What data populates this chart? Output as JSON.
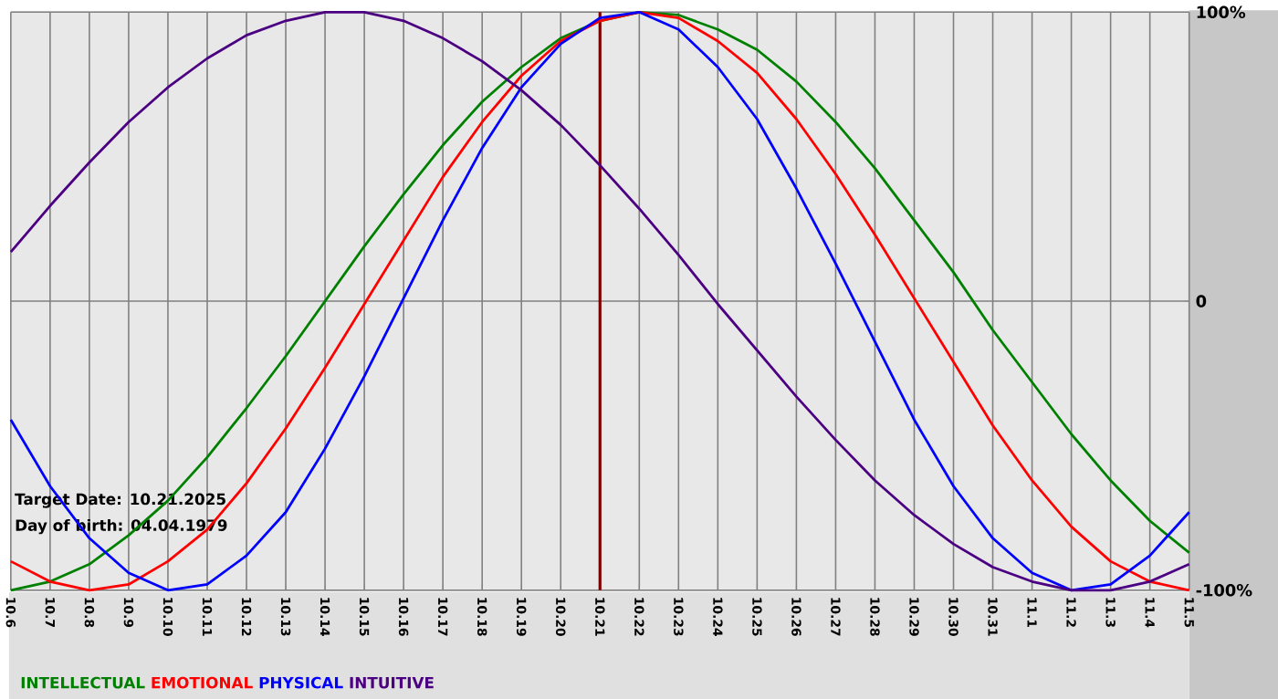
{
  "chart_data": {
    "type": "line",
    "categories": [
      "10.6",
      "10.7",
      "10.8",
      "10.9",
      "10.10",
      "10.11",
      "10.12",
      "10.13",
      "10.14",
      "10.15",
      "10.16",
      "10.17",
      "10.18",
      "10.19",
      "10.20",
      "10.21",
      "10.22",
      "10.23",
      "10.24",
      "10.25",
      "10.26",
      "10.27",
      "10.28",
      "10.29",
      "10.30",
      "10.31",
      "11.1",
      "11.2",
      "11.3",
      "11.4",
      "11.5"
    ],
    "series": [
      {
        "name": "INTELLECTUAL",
        "color": "#008000",
        "values": [
          -100,
          -97,
          -91,
          -81,
          -69,
          -54,
          -37,
          -19,
          0,
          19,
          37,
          54,
          69,
          81,
          91,
          97,
          100,
          99,
          94,
          87,
          76,
          62,
          46,
          28,
          10,
          -10,
          -28,
          -46,
          -62,
          -76,
          -87
        ]
      },
      {
        "name": "EMOTIONAL",
        "color": "#ff0000",
        "values": [
          -90,
          -97,
          -100,
          -98,
          -90,
          -79,
          -63,
          -44,
          -23,
          -1,
          21,
          43,
          62,
          78,
          90,
          97,
          100,
          98,
          90,
          79,
          63,
          44,
          23,
          1,
          -21,
          -43,
          -62,
          -78,
          -90,
          -97,
          -100
        ]
      },
      {
        "name": "PHYSICAL",
        "color": "#0000ff",
        "values": [
          -41,
          -64,
          -82,
          -94,
          -100,
          -98,
          -88,
          -73,
          -51,
          -26,
          1,
          28,
          53,
          74,
          89,
          98,
          100,
          94,
          81,
          63,
          39,
          13,
          -14,
          -41,
          -64,
          -82,
          -94,
          -100,
          -98,
          -88,
          -73
        ]
      },
      {
        "name": "INTUITIVE",
        "color": "#4b0082",
        "values": [
          17,
          33,
          48,
          62,
          74,
          84,
          92,
          97,
          100,
          100,
          97,
          91,
          83,
          73,
          61,
          47,
          32,
          16,
          -1,
          -17,
          -33,
          -48,
          -62,
          -74,
          -84,
          -92,
          -97,
          -100,
          -100,
          -97,
          -91
        ]
      }
    ],
    "ylim": [
      -100,
      100
    ],
    "yticks": [
      {
        "value": 100,
        "label": "100%"
      },
      0,
      {
        "value": -100,
        "label": "-100%"
      }
    ],
    "grid": true,
    "legend": "bottom",
    "line_style": "solid",
    "marker": "none",
    "ref_lines": [
      {
        "axis": "x",
        "value": "10.21",
        "color": "#800000"
      }
    ],
    "annotations": [
      "Target Date: 10.21.2025",
      "Day of birth: 04.04.1979"
    ]
  }
}
